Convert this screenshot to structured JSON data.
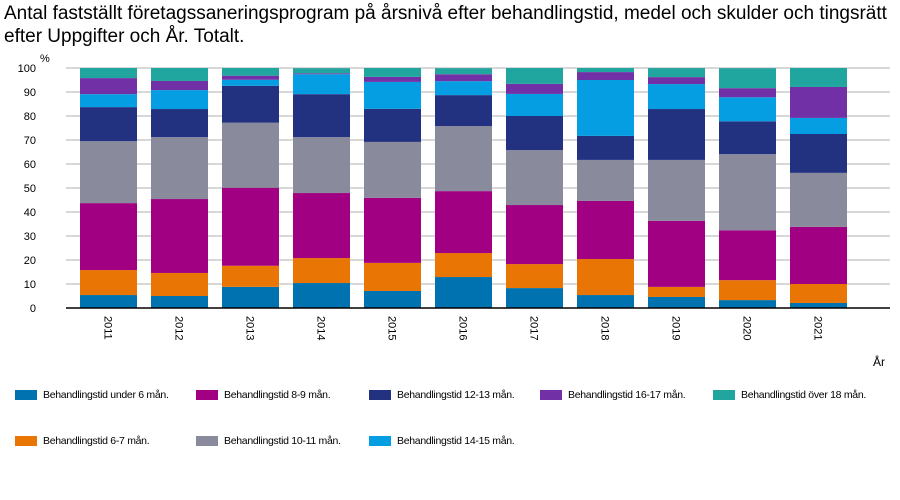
{
  "title": "Antal fastställt företagssaneringsprogram på årsnivå efter behandlingstid, medel och skulder och tingsrätt efter Uppgifter och År. Totalt.",
  "chart_data": {
    "type": "bar",
    "stacked": true,
    "title": "Antal fastställt företagssaneringsprogram på årsnivå efter behandlingstid, medel och skulder och tingsrätt efter Uppgifter och År. Totalt.",
    "xlabel": "År",
    "ylabel": "%",
    "ylim": [
      0,
      100
    ],
    "yticks": [
      0,
      10,
      20,
      30,
      40,
      50,
      60,
      70,
      80,
      90,
      100
    ],
    "grid": true,
    "legend_position": "bottom",
    "categories": [
      "2011",
      "2012",
      "2013",
      "2014",
      "2015",
      "2016",
      "2017",
      "2018",
      "2019",
      "2020",
      "2021"
    ],
    "series": [
      {
        "name": "Behandlingstid under 6 mån.",
        "color": "#0072b0",
        "values": [
          5.4,
          5.0,
          8.8,
          10.4,
          7.1,
          12.9,
          8.3,
          5.4,
          4.6,
          3.3,
          2.1
        ]
      },
      {
        "name": "Behandlingstid 6-7 mån.",
        "color": "#e87504",
        "values": [
          10.4,
          9.6,
          8.8,
          10.4,
          11.7,
          10.0,
          10.0,
          15.0,
          4.2,
          8.3,
          7.9
        ]
      },
      {
        "name": "Behandlingstid 8-9 mån.",
        "color": "#a10082",
        "values": [
          27.9,
          30.8,
          32.5,
          27.1,
          27.1,
          25.8,
          24.6,
          24.2,
          27.5,
          20.8,
          23.8
        ]
      },
      {
        "name": "Behandlingstid 10-11 mån.",
        "color": "#898a9c",
        "values": [
          25.8,
          25.8,
          27.1,
          23.3,
          23.3,
          27.1,
          22.9,
          17.1,
          25.4,
          31.7,
          22.5
        ]
      },
      {
        "name": "Behandlingstid 12-13 mån.",
        "color": "#233181",
        "values": [
          14.2,
          11.7,
          15.4,
          17.9,
          13.8,
          12.9,
          14.2,
          10.0,
          21.2,
          13.7,
          16.2
        ]
      },
      {
        "name": "Behandlingstid 14-15 mån.",
        "color": "#059ee2",
        "values": [
          5.4,
          7.9,
          2.5,
          8.3,
          11.2,
          5.8,
          9.2,
          23.3,
          10.4,
          10.0,
          6.7
        ]
      },
      {
        "name": "Behandlingstid 16-17 mån.",
        "color": "#7230a6",
        "values": [
          6.7,
          3.8,
          1.7,
          0.4,
          2.1,
          2.9,
          4.2,
          3.3,
          2.9,
          3.8,
          12.9
        ]
      },
      {
        "name": "Behandlingstid över 18 mån.",
        "color": "#21a59f",
        "values": [
          4.2,
          5.4,
          3.3,
          2.1,
          3.8,
          2.5,
          6.7,
          1.7,
          3.75,
          8.3,
          7.9
        ]
      }
    ]
  }
}
